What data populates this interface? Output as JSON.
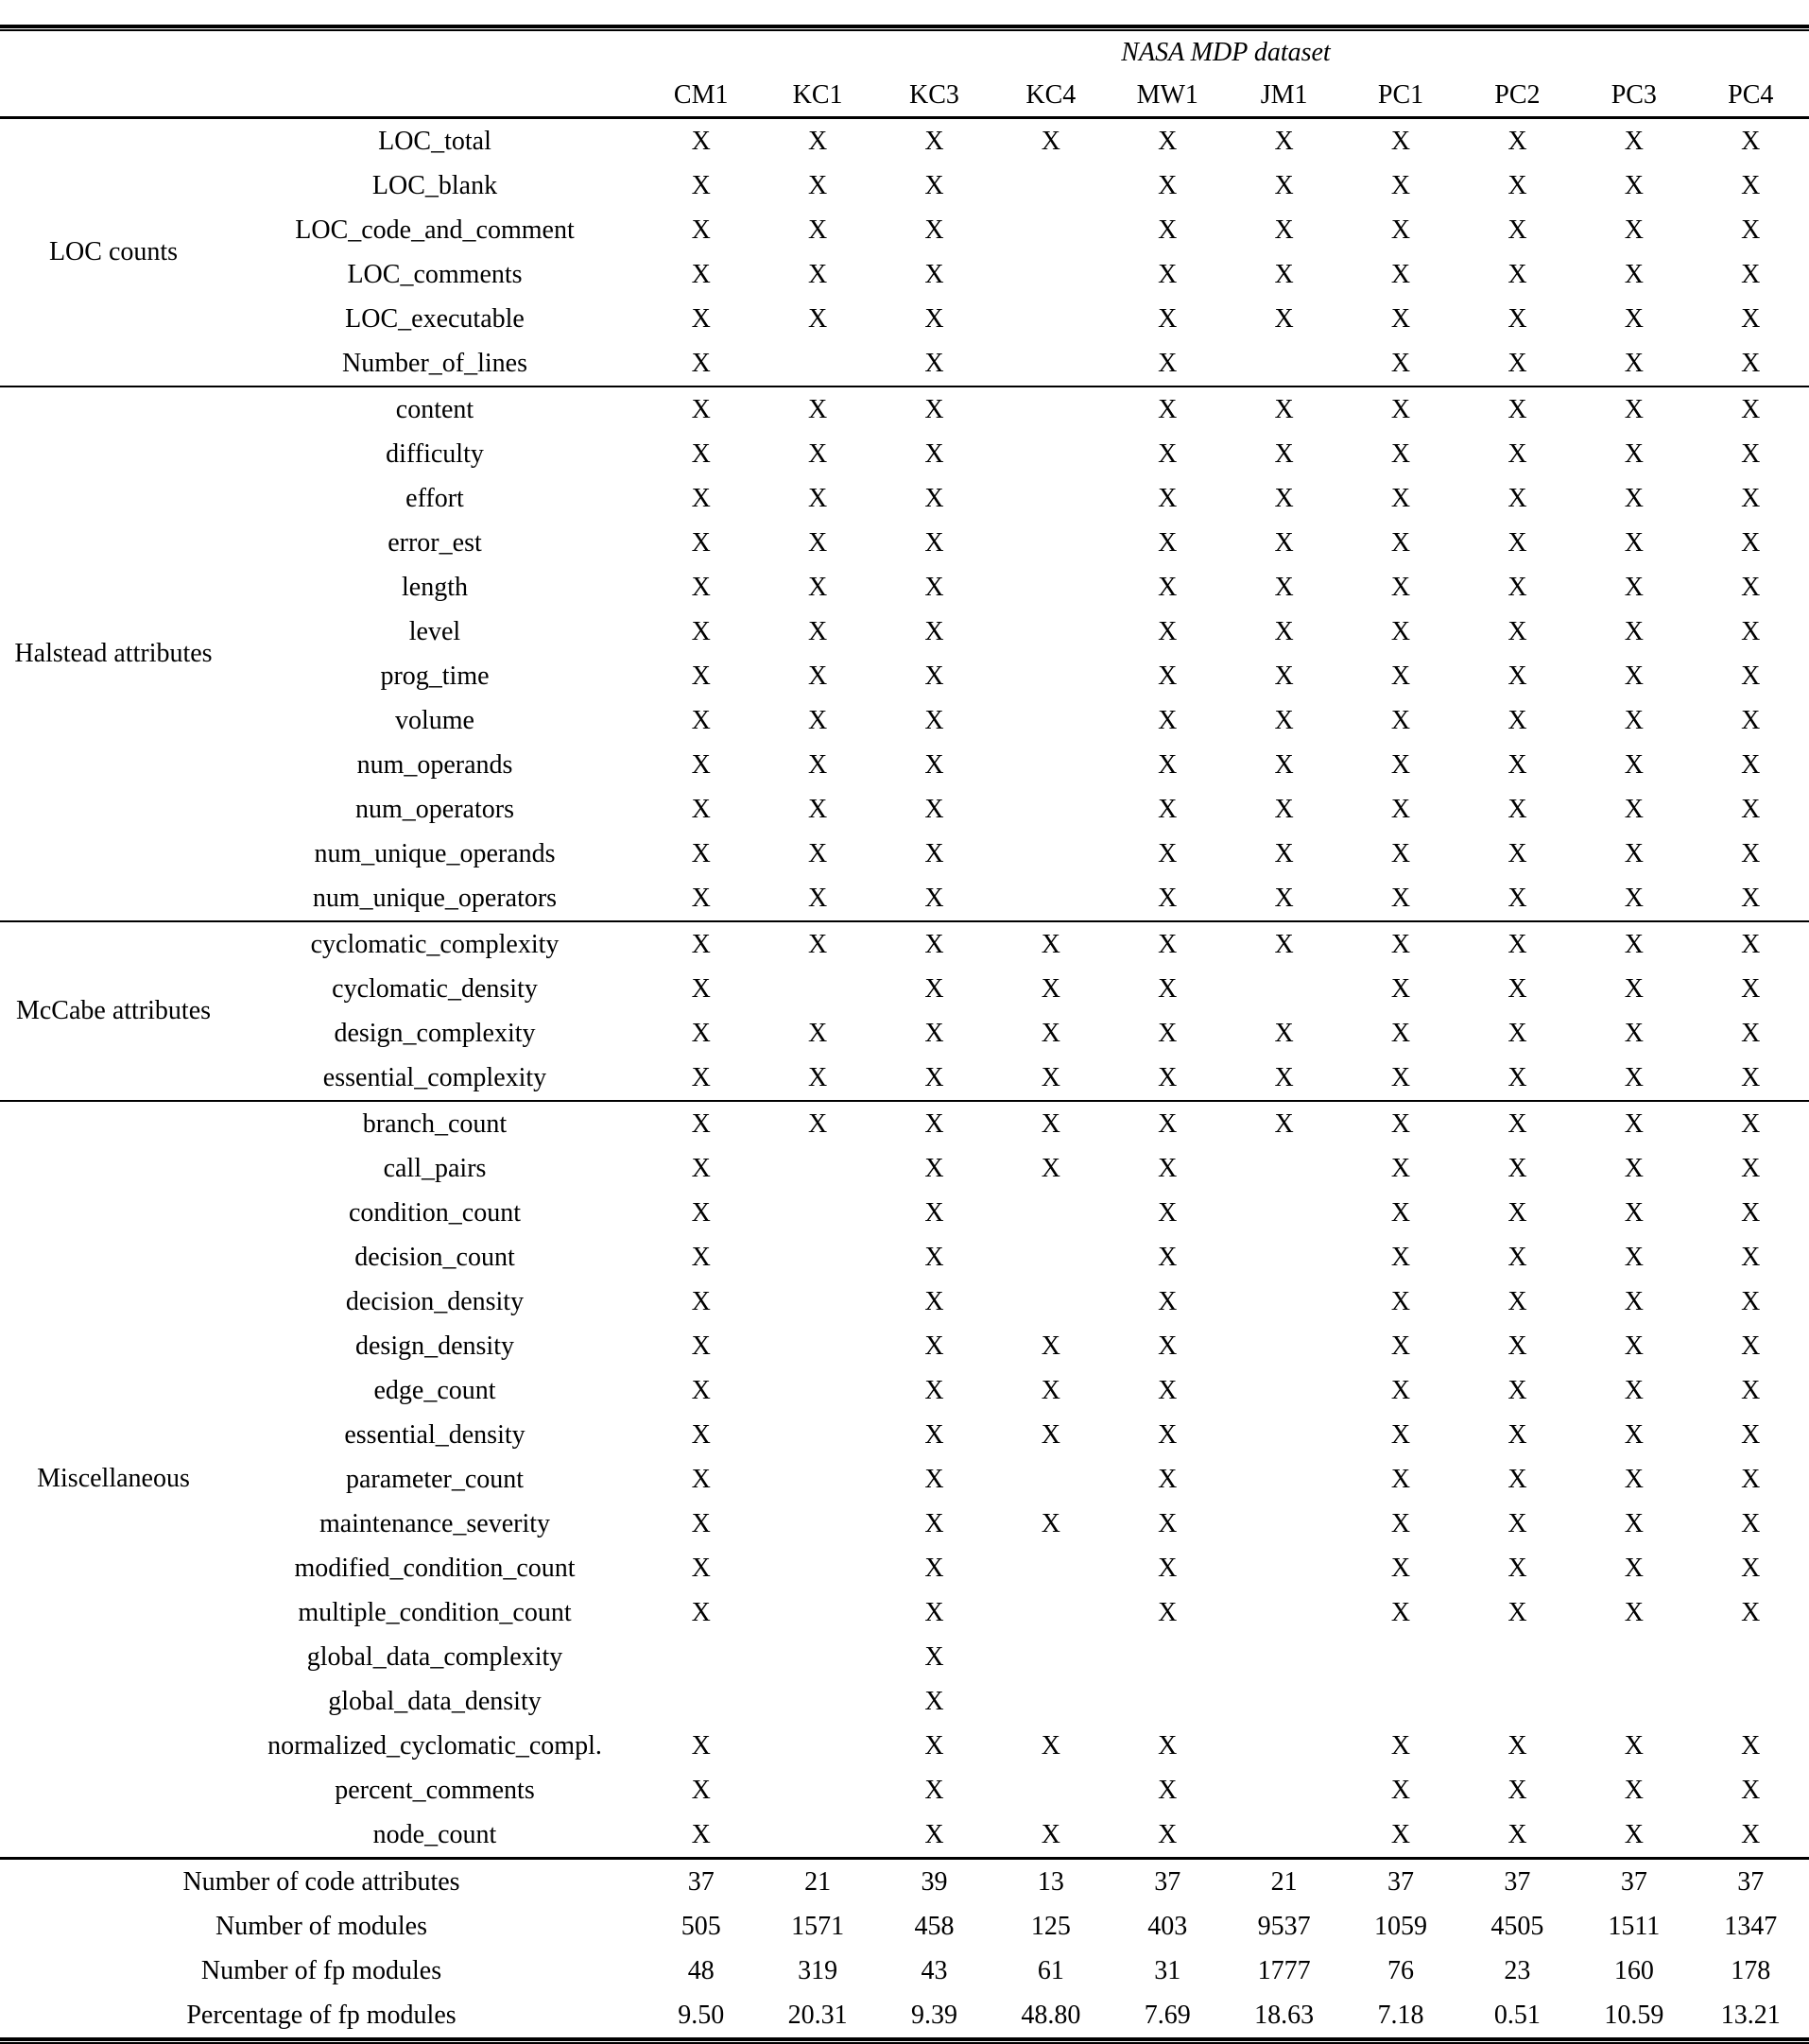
{
  "title": "NASA MDP dataset",
  "mark": "X",
  "columns": [
    "CM1",
    "KC1",
    "KC3",
    "KC4",
    "MW1",
    "JM1",
    "PC1",
    "PC2",
    "PC3",
    "PC4"
  ],
  "groups": [
    {
      "label": "LOC counts",
      "rows": [
        {
          "attr": "LOC_total",
          "marks": [
            1,
            1,
            1,
            1,
            1,
            1,
            1,
            1,
            1,
            1
          ]
        },
        {
          "attr": "LOC_blank",
          "marks": [
            1,
            1,
            1,
            0,
            1,
            1,
            1,
            1,
            1,
            1
          ]
        },
        {
          "attr": "LOC_code_and_comment",
          "marks": [
            1,
            1,
            1,
            0,
            1,
            1,
            1,
            1,
            1,
            1
          ]
        },
        {
          "attr": "LOC_comments",
          "marks": [
            1,
            1,
            1,
            0,
            1,
            1,
            1,
            1,
            1,
            1
          ]
        },
        {
          "attr": "LOC_executable",
          "marks": [
            1,
            1,
            1,
            0,
            1,
            1,
            1,
            1,
            1,
            1
          ]
        },
        {
          "attr": "Number_of_lines",
          "marks": [
            1,
            0,
            1,
            0,
            1,
            0,
            1,
            1,
            1,
            1
          ]
        }
      ]
    },
    {
      "label": "Halstead attributes",
      "rows": [
        {
          "attr": "content",
          "marks": [
            1,
            1,
            1,
            0,
            1,
            1,
            1,
            1,
            1,
            1
          ]
        },
        {
          "attr": "difficulty",
          "marks": [
            1,
            1,
            1,
            0,
            1,
            1,
            1,
            1,
            1,
            1
          ]
        },
        {
          "attr": "effort",
          "marks": [
            1,
            1,
            1,
            0,
            1,
            1,
            1,
            1,
            1,
            1
          ]
        },
        {
          "attr": "error_est",
          "marks": [
            1,
            1,
            1,
            0,
            1,
            1,
            1,
            1,
            1,
            1
          ]
        },
        {
          "attr": "length",
          "marks": [
            1,
            1,
            1,
            0,
            1,
            1,
            1,
            1,
            1,
            1
          ]
        },
        {
          "attr": "level",
          "marks": [
            1,
            1,
            1,
            0,
            1,
            1,
            1,
            1,
            1,
            1
          ]
        },
        {
          "attr": "prog_time",
          "marks": [
            1,
            1,
            1,
            0,
            1,
            1,
            1,
            1,
            1,
            1
          ]
        },
        {
          "attr": "volume",
          "marks": [
            1,
            1,
            1,
            0,
            1,
            1,
            1,
            1,
            1,
            1
          ]
        },
        {
          "attr": "num_operands",
          "marks": [
            1,
            1,
            1,
            0,
            1,
            1,
            1,
            1,
            1,
            1
          ]
        },
        {
          "attr": "num_operators",
          "marks": [
            1,
            1,
            1,
            0,
            1,
            1,
            1,
            1,
            1,
            1
          ]
        },
        {
          "attr": "num_unique_operands",
          "marks": [
            1,
            1,
            1,
            0,
            1,
            1,
            1,
            1,
            1,
            1
          ]
        },
        {
          "attr": "num_unique_operators",
          "marks": [
            1,
            1,
            1,
            0,
            1,
            1,
            1,
            1,
            1,
            1
          ]
        }
      ]
    },
    {
      "label": "McCabe attributes",
      "rows": [
        {
          "attr": "cyclomatic_complexity",
          "marks": [
            1,
            1,
            1,
            1,
            1,
            1,
            1,
            1,
            1,
            1
          ]
        },
        {
          "attr": "cyclomatic_density",
          "marks": [
            1,
            0,
            1,
            1,
            1,
            0,
            1,
            1,
            1,
            1
          ]
        },
        {
          "attr": "design_complexity",
          "marks": [
            1,
            1,
            1,
            1,
            1,
            1,
            1,
            1,
            1,
            1
          ]
        },
        {
          "attr": "essential_complexity",
          "marks": [
            1,
            1,
            1,
            1,
            1,
            1,
            1,
            1,
            1,
            1
          ]
        }
      ]
    },
    {
      "label": "Miscellaneous",
      "rows": [
        {
          "attr": "branch_count",
          "marks": [
            1,
            1,
            1,
            1,
            1,
            1,
            1,
            1,
            1,
            1
          ]
        },
        {
          "attr": "call_pairs",
          "marks": [
            1,
            0,
            1,
            1,
            1,
            0,
            1,
            1,
            1,
            1
          ]
        },
        {
          "attr": "condition_count",
          "marks": [
            1,
            0,
            1,
            0,
            1,
            0,
            1,
            1,
            1,
            1
          ]
        },
        {
          "attr": "decision_count",
          "marks": [
            1,
            0,
            1,
            0,
            1,
            0,
            1,
            1,
            1,
            1
          ]
        },
        {
          "attr": "decision_density",
          "marks": [
            1,
            0,
            1,
            0,
            1,
            0,
            1,
            1,
            1,
            1
          ]
        },
        {
          "attr": "design_density",
          "marks": [
            1,
            0,
            1,
            1,
            1,
            0,
            1,
            1,
            1,
            1
          ]
        },
        {
          "attr": "edge_count",
          "marks": [
            1,
            0,
            1,
            1,
            1,
            0,
            1,
            1,
            1,
            1
          ]
        },
        {
          "attr": "essential_density",
          "marks": [
            1,
            0,
            1,
            1,
            1,
            0,
            1,
            1,
            1,
            1
          ]
        },
        {
          "attr": "parameter_count",
          "marks": [
            1,
            0,
            1,
            0,
            1,
            0,
            1,
            1,
            1,
            1
          ]
        },
        {
          "attr": "maintenance_severity",
          "marks": [
            1,
            0,
            1,
            1,
            1,
            0,
            1,
            1,
            1,
            1
          ]
        },
        {
          "attr": "modified_condition_count",
          "marks": [
            1,
            0,
            1,
            0,
            1,
            0,
            1,
            1,
            1,
            1
          ]
        },
        {
          "attr": "multiple_condition_count",
          "marks": [
            1,
            0,
            1,
            0,
            1,
            0,
            1,
            1,
            1,
            1
          ]
        },
        {
          "attr": "global_data_complexity",
          "marks": [
            0,
            0,
            1,
            0,
            0,
            0,
            0,
            0,
            0,
            0
          ]
        },
        {
          "attr": "global_data_density",
          "marks": [
            0,
            0,
            1,
            0,
            0,
            0,
            0,
            0,
            0,
            0
          ]
        },
        {
          "attr": "normalized_cyclomatic_compl.",
          "marks": [
            1,
            0,
            1,
            1,
            1,
            0,
            1,
            1,
            1,
            1
          ]
        },
        {
          "attr": "percent_comments",
          "marks": [
            1,
            0,
            1,
            0,
            1,
            0,
            1,
            1,
            1,
            1
          ]
        },
        {
          "attr": "node_count",
          "marks": [
            1,
            0,
            1,
            1,
            1,
            0,
            1,
            1,
            1,
            1
          ]
        }
      ]
    }
  ],
  "summary": [
    {
      "label": "Number of code attributes",
      "values": [
        "37",
        "21",
        "39",
        "13",
        "37",
        "21",
        "37",
        "37",
        "37",
        "37"
      ]
    },
    {
      "label": "Number of modules",
      "values": [
        "505",
        "1571",
        "458",
        "125",
        "403",
        "9537",
        "1059",
        "4505",
        "1511",
        "1347"
      ]
    },
    {
      "label": "Number of fp modules",
      "values": [
        "48",
        "319",
        "43",
        "61",
        "31",
        "1777",
        "76",
        "23",
        "160",
        "178"
      ]
    },
    {
      "label": "Percentage of fp modules",
      "values": [
        "9.50",
        "20.31",
        "9.39",
        "48.80",
        "7.69",
        "18.63",
        "7.18",
        "0.51",
        "10.59",
        "13.21"
      ]
    }
  ],
  "colors": {
    "text": "#000000",
    "background": "#ffffff"
  }
}
